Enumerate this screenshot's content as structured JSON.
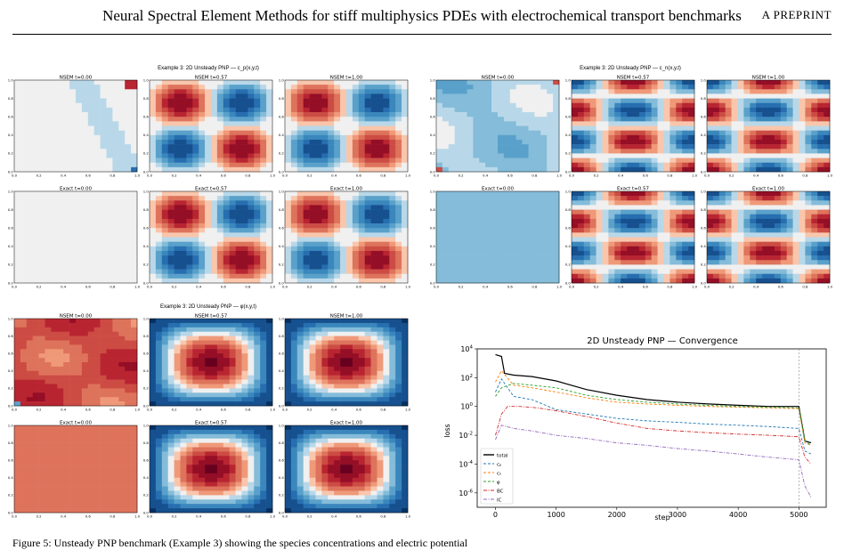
{
  "header": {
    "title": "Neural Spectral Element Methods for stiff multiphysics PDEs with electrochemical transport benchmarks",
    "tag": "A PREPRINT"
  },
  "figures": [
    {
      "title": "Example 3: 2D Unsteady PNP — c_p(x,y,t)",
      "field": "cp",
      "subplots": [
        {
          "label": "NSEM  t=0.00"
        },
        {
          "label": "NSEM  t=0.57"
        },
        {
          "label": "NSEM  t=1.00"
        },
        {
          "label": "Exact t=0.00"
        },
        {
          "label": "Exact t=0.57"
        },
        {
          "label": "Exact t=1.00"
        }
      ]
    },
    {
      "title": "Example 3: 2D Unsteady PNP — c_n(x,y,t)",
      "field": "cn",
      "subplots": [
        {
          "label": "NSEM  t=0.00"
        },
        {
          "label": "NSEM  t=0.57"
        },
        {
          "label": "NSEM  t=1.00"
        },
        {
          "label": "Exact t=0.00"
        },
        {
          "label": "Exact t=0.57"
        },
        {
          "label": "Exact t=1.00"
        }
      ]
    },
    {
      "title": "Example 3: 2D Unsteady PNP — φ(x,y,t)",
      "field": "phi",
      "subplots": [
        {
          "label": "NSEM  t=0.00"
        },
        {
          "label": "NSEM  t=0.57"
        },
        {
          "label": "NSEM  t=1.00"
        },
        {
          "label": "Exact t=0.00"
        },
        {
          "label": "Exact t=0.57"
        },
        {
          "label": "Exact t=1.00"
        }
      ]
    }
  ],
  "contour_ticks": [
    "0.0",
    "0.2",
    "0.4",
    "0.6",
    "0.8",
    "1.0"
  ],
  "chart_data": {
    "type": "line",
    "title": "2D Unsteady PNP — Convergence",
    "xlabel": "step",
    "ylabel": "loss",
    "yscale": "log",
    "xlim": [
      -300,
      5450
    ],
    "ylim": [
      1e-07,
      10000.0
    ],
    "xticks": [
      "0",
      "1000",
      "2000",
      "3000",
      "4000",
      "5000"
    ],
    "yticks": [
      "10^4",
      "10^2",
      "10^0",
      "10^-2",
      "10^-4",
      "10^-6"
    ],
    "vline_x": 5000,
    "legend_position": "bottom-left",
    "series": [
      {
        "name": "total",
        "color": "#000000",
        "dash": "solid",
        "x": [
          0,
          100,
          150,
          300,
          600,
          1000,
          1500,
          2000,
          2500,
          3000,
          3500,
          4000,
          4500,
          5000,
          5100,
          5200
        ],
        "y": [
          4000,
          3000,
          200,
          150,
          120,
          60,
          15,
          6,
          3,
          2,
          1.5,
          1.2,
          1,
          1,
          0.004,
          0.003
        ]
      },
      {
        "name": "cₚ",
        "color": "#1f77b4",
        "dash": "dashed",
        "x": [
          0,
          100,
          300,
          600,
          1000,
          1500,
          2000,
          2500,
          3000,
          3500,
          4000,
          4500,
          5000,
          5100,
          5200
        ],
        "y": [
          10,
          80,
          5,
          3,
          0.6,
          0.3,
          0.15,
          0.1,
          0.08,
          0.06,
          0.05,
          0.04,
          0.03,
          0.0008,
          0.0005
        ]
      },
      {
        "name": "cₙ",
        "color": "#ff7f0e",
        "dash": "dashed",
        "x": [
          0,
          100,
          300,
          600,
          1000,
          1500,
          2000,
          2500,
          3000,
          3500,
          4000,
          4500,
          5000,
          5100,
          5200
        ],
        "y": [
          50,
          300,
          30,
          20,
          10,
          4,
          2,
          1.5,
          1.2,
          1,
          0.9,
          0.8,
          0.7,
          0.003,
          0.002
        ]
      },
      {
        "name": "φ",
        "color": "#2ca02c",
        "dash": "dashed",
        "x": [
          0,
          100,
          300,
          600,
          1000,
          1500,
          2000,
          2500,
          3000,
          3500,
          4000,
          4500,
          5000,
          5100,
          5200
        ],
        "y": [
          5,
          20,
          40,
          30,
          20,
          6,
          3,
          2,
          1.5,
          1.2,
          1,
          0.9,
          0.8,
          0.004,
          0.002
        ]
      },
      {
        "name": "BC",
        "color": "#d62728",
        "dash": "dashdot",
        "x": [
          0,
          100,
          200,
          400,
          700,
          1000,
          1500,
          2000,
          2500,
          3000,
          3500,
          4000,
          4500,
          5000,
          5100,
          5200
        ],
        "y": [
          0.01,
          0.3,
          1,
          1,
          0.8,
          0.5,
          0.2,
          0.07,
          0.03,
          0.02,
          0.015,
          0.012,
          0.01,
          0.008,
          0.0003,
          0.0001
        ]
      },
      {
        "name": "IC",
        "color": "#9467bd",
        "dash": "dashdot",
        "x": [
          0,
          100,
          300,
          600,
          1000,
          1500,
          2000,
          2500,
          3000,
          3500,
          4000,
          4500,
          5000,
          5100,
          5200
        ],
        "y": [
          0.005,
          0.05,
          0.03,
          0.02,
          0.01,
          0.006,
          0.003,
          0.002,
          0.0012,
          0.0008,
          0.0005,
          0.0003,
          0.0002,
          3e-06,
          5e-07
        ]
      }
    ]
  },
  "caption": {
    "text": "Figure 5: Unsteady PNP benchmark (Example 3) showing the species concentrations and electric potential"
  }
}
